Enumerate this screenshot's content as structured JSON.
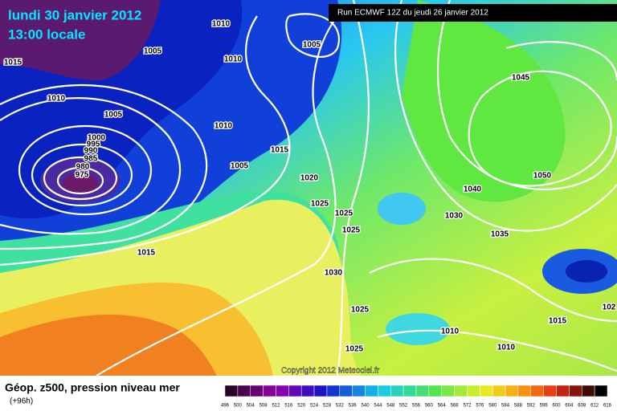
{
  "header": {
    "date": "lundi 30 janvier 2012",
    "time": "13:00 locale",
    "run": "Run ECMWF 12Z du jeudi 26 janvier 2012",
    "copyright": "Copyright 2012 Meteociel.fr"
  },
  "isobars": {
    "labels": [
      "1010",
      "1005",
      "1015",
      "1010",
      "1005",
      "1010",
      "1005",
      "1010",
      "1000",
      "995",
      "990",
      "985",
      "980",
      "975",
      "1015",
      "1005",
      "1020",
      "1025",
      "1025",
      "1025",
      "1045",
      "1050",
      "1040",
      "1030",
      "1035",
      "1015",
      "1030",
      "1025",
      "1015",
      "1010",
      "1025",
      "1010",
      "102"
    ]
  },
  "footer": {
    "title": "Géop. z500, pression niveau mer",
    "lead": "(+96h)"
  },
  "legend": {
    "labels": [
      496,
      500,
      504,
      508,
      512,
      516,
      520,
      524,
      528,
      532,
      536,
      540,
      544,
      548,
      552,
      556,
      560,
      564,
      568,
      572,
      576,
      580,
      584,
      588,
      592,
      596,
      600,
      604,
      608,
      612,
      616
    ]
  }
}
